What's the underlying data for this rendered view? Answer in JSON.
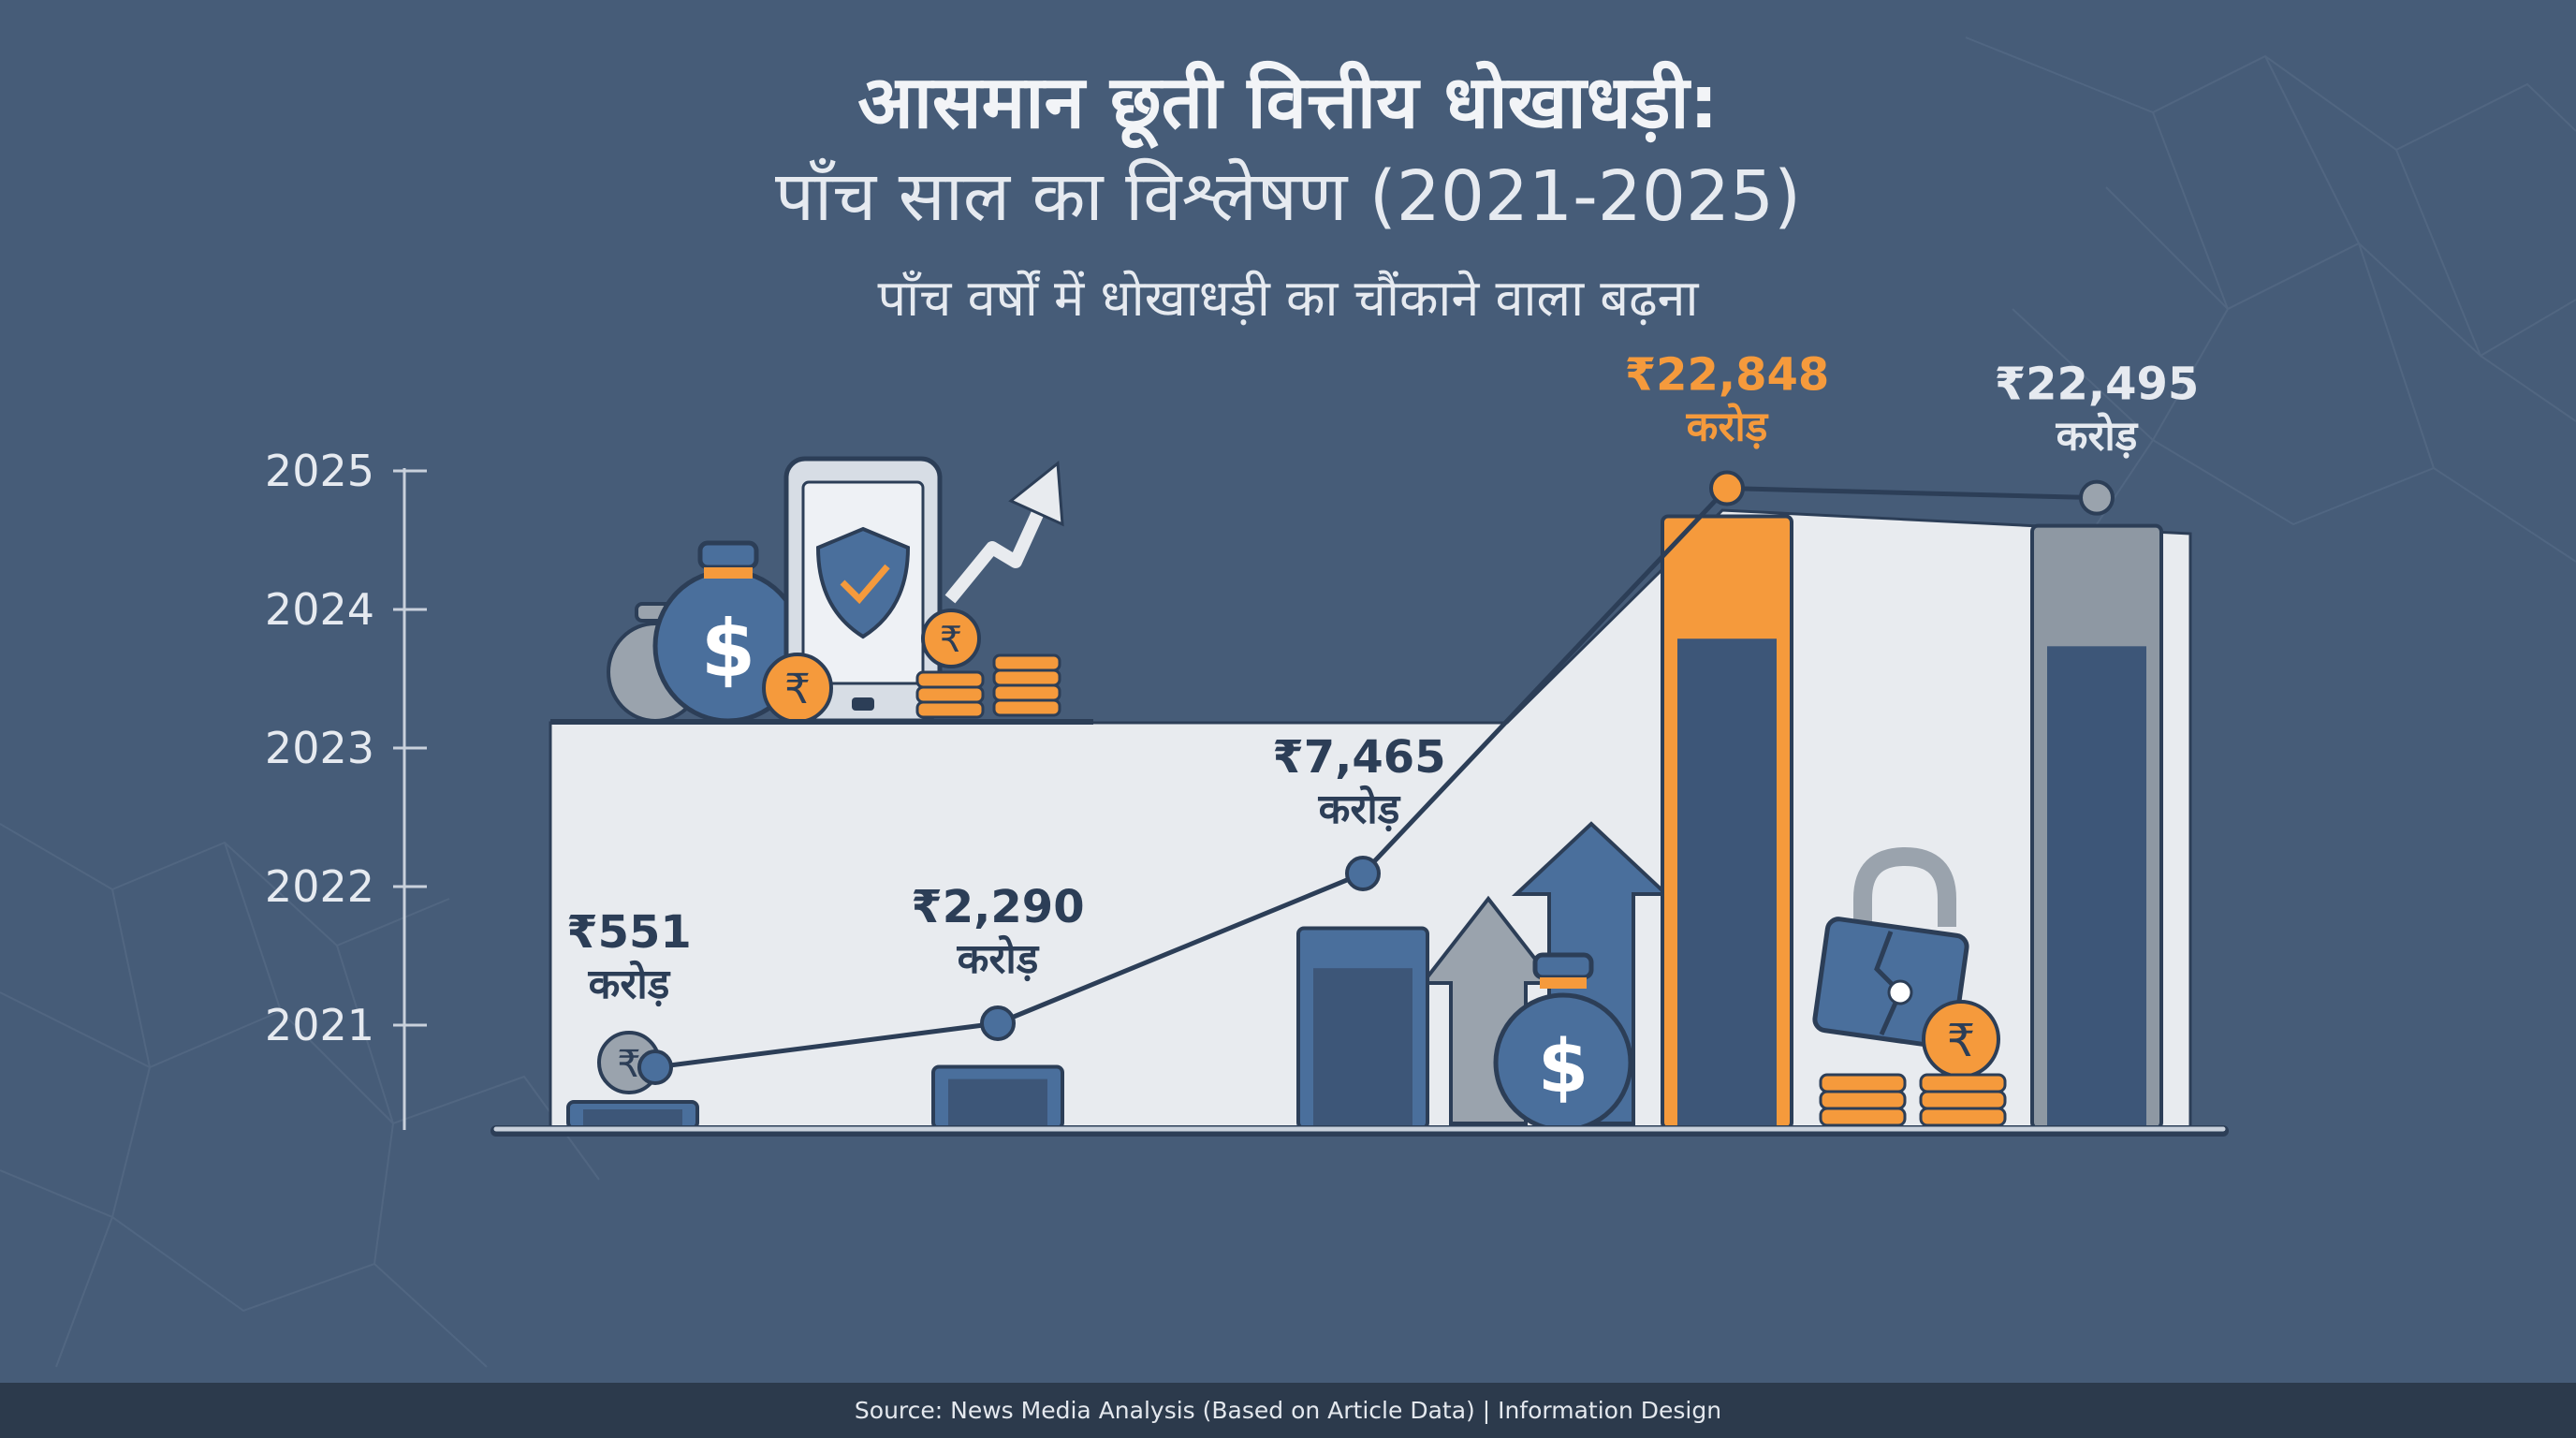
{
  "header": {
    "title": "आसमान छूती वित्तीय धोखाधड़ी:",
    "subtitle": "पाँच साल का विश्लेषण (2021-2025)",
    "tagline": "पाँच वर्षों में धोखाधड़ी का चौंकाने वाला बढ़ना"
  },
  "chart_data": {
    "type": "bar",
    "title": "आसमान छूती वित्तीय धोखाधड़ी: पाँच साल का विश्लेषण (2021-2025)",
    "subtitle": "पाँच वर्षों में धोखाधड़ी का चौंकाने वाला बढ़ना",
    "y_tick_labels": [
      "2021",
      "2022",
      "2023",
      "2024",
      "2025"
    ],
    "ylim": [
      0,
      25000
    ],
    "unit": "करोड़",
    "grid": false,
    "overlay": "line",
    "points": [
      {
        "value": 551,
        "label": "₹551",
        "unit": "करोड़",
        "color": "#4a6f9c",
        "highlight": false
      },
      {
        "value": 2290,
        "label": "₹2,290",
        "unit": "करोड़",
        "color": "#4a6f9c",
        "highlight": false
      },
      {
        "value": 7465,
        "label": "₹7,465",
        "unit": "करोड़",
        "color": "#4a6f9c",
        "highlight": false
      },
      {
        "value": 22848,
        "label": "₹22,848",
        "unit": "करोड़",
        "color": "#f59a3c",
        "highlight": true
      },
      {
        "value": 22495,
        "label": "₹22,495",
        "unit": "करोड़",
        "color": "#8e98a3",
        "highlight": false
      }
    ]
  },
  "colors": {
    "background": "#465c78",
    "panel": "#e8ebef",
    "bar": "#4a6f9c",
    "highlight": "#f59a3c",
    "muted": "#8e98a3",
    "line": "#2c3e57"
  },
  "icons": [
    "money-bag-icon",
    "smartphone-shield-icon",
    "trend-arrow-icon",
    "rupee-coin-icon",
    "coin-stack-icon",
    "up-arrow-icon",
    "broken-padlock-icon"
  ],
  "footer": {
    "source": "Source: News Media Analysis (Based on Article Data) | Information Design"
  }
}
